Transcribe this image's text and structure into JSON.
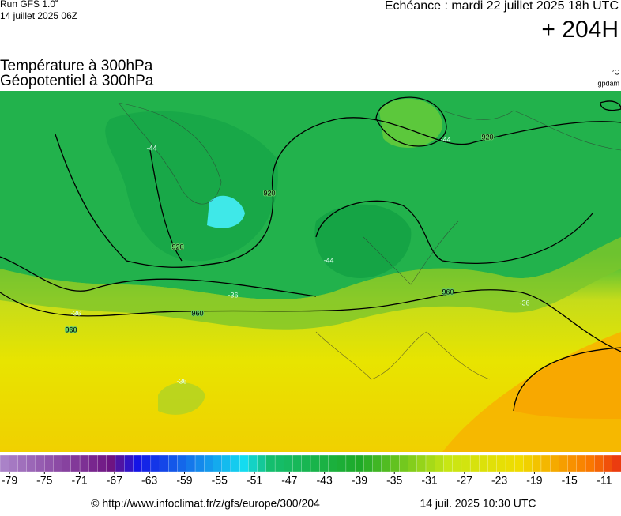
{
  "header": {
    "run": "Run GFS 1.0˚",
    "date": "14 juillet 2025 06Z",
    "echeance": "Echéance : mardi 22 juillet 2025 18h UTC",
    "lead": "+ 204H",
    "title1": "Température à 300hPa",
    "title2": "Géopotentiel à 300hPa",
    "unit1": "°C",
    "unit2": "gpdam"
  },
  "map": {
    "contour_labels": [
      "920",
      "920",
      "920",
      "960",
      "960",
      "960",
      "-44",
      "-44",
      "-44",
      "-36",
      "-36",
      "-36",
      "-36"
    ]
  },
  "colorbar": {
    "ticks": [
      -79,
      -75,
      -71,
      -67,
      -63,
      -59,
      -55,
      -51,
      -47,
      -43,
      -39,
      -35,
      -31,
      -27,
      -23,
      -19,
      -15,
      -11
    ]
  },
  "footer": {
    "url": "© http://www.infoclimat.fr/z/gfs/europe/300/204",
    "timestamp": "14 juil. 2025 10:30 UTC"
  }
}
